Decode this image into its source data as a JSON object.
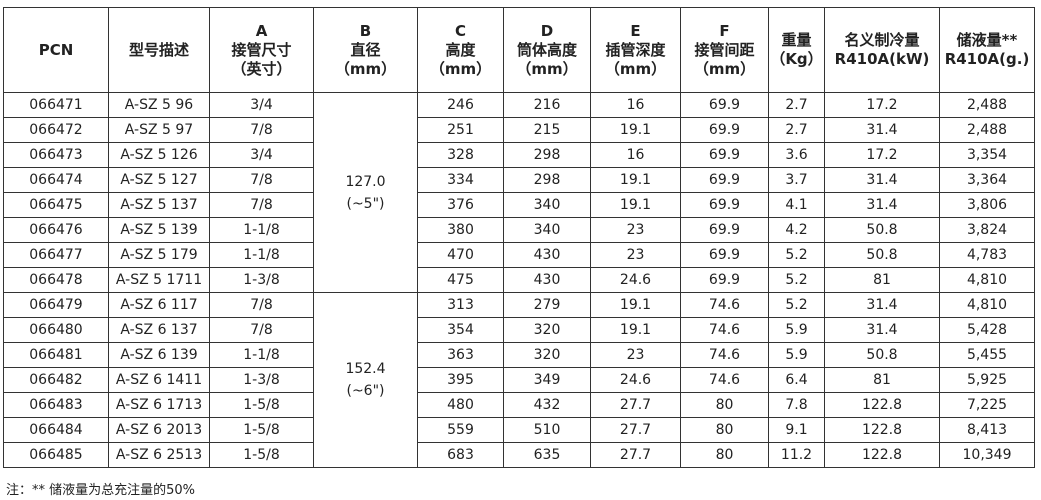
{
  "headers": [
    {
      "lines": [
        "PCN"
      ]
    },
    {
      "lines": [
        "型号描述"
      ]
    },
    {
      "lines": [
        "A",
        "接管尺寸",
        "（英寸）"
      ]
    },
    {
      "lines": [
        "B",
        "直径",
        "（mm）"
      ]
    },
    {
      "lines": [
        "C",
        "高度",
        "（mm）"
      ]
    },
    {
      "lines": [
        "D",
        "筒体高度",
        "（mm）"
      ]
    },
    {
      "lines": [
        "E",
        "插管深度",
        "（mm）"
      ]
    },
    {
      "lines": [
        "F",
        "接管间距",
        "（mm）"
      ]
    },
    {
      "lines": [
        "重量",
        "（Kg）"
      ]
    },
    {
      "lines": [
        "名义制冷量",
        "R410A(kW)"
      ]
    },
    {
      "lines": [
        "储液量**",
        "R410A(g.)"
      ]
    }
  ],
  "diameter_groups": [
    {
      "lines": [
        "127.0",
        "(~5\")"
      ],
      "rows": 8
    },
    {
      "lines": [
        "152.4",
        "(~6\")"
      ],
      "rows": 7
    }
  ],
  "rows": [
    [
      "066471",
      "A-SZ 5 96",
      "3/4",
      "246",
      "216",
      "16",
      "69.9",
      "2.7",
      "17.2",
      "2,488"
    ],
    [
      "066472",
      "A-SZ 5 97",
      "7/8",
      "251",
      "215",
      "19.1",
      "69.9",
      "2.7",
      "31.4",
      "2,488"
    ],
    [
      "066473",
      "A-SZ 5 126",
      "3/4",
      "328",
      "298",
      "16",
      "69.9",
      "3.6",
      "17.2",
      "3,354"
    ],
    [
      "066474",
      "A-SZ 5 127",
      "7/8",
      "334",
      "298",
      "19.1",
      "69.9",
      "3.7",
      "31.4",
      "3,364"
    ],
    [
      "066475",
      "A-SZ 5 137",
      "7/8",
      "376",
      "340",
      "19.1",
      "69.9",
      "4.1",
      "31.4",
      "3,806"
    ],
    [
      "066476",
      "A-SZ 5 139",
      "1-1/8",
      "380",
      "340",
      "23",
      "69.9",
      "4.2",
      "50.8",
      "3,824"
    ],
    [
      "066477",
      "A-SZ 5 179",
      "1-1/8",
      "470",
      "430",
      "23",
      "69.9",
      "5.2",
      "50.8",
      "4,783"
    ],
    [
      "066478",
      "A-SZ 5 1711",
      "1-3/8",
      "475",
      "430",
      "24.6",
      "69.9",
      "5.2",
      "81",
      "4,810"
    ],
    [
      "066479",
      "A-SZ 6 117",
      "7/8",
      "313",
      "279",
      "19.1",
      "74.6",
      "5.2",
      "31.4",
      "4,810"
    ],
    [
      "066480",
      "A-SZ 6 137",
      "7/8",
      "354",
      "320",
      "19.1",
      "74.6",
      "5.9",
      "31.4",
      "5,428"
    ],
    [
      "066481",
      "A-SZ 6 139",
      "1-1/8",
      "363",
      "320",
      "23",
      "74.6",
      "5.9",
      "50.8",
      "5,455"
    ],
    [
      "066482",
      "A-SZ 6 1411",
      "1-3/8",
      "395",
      "349",
      "24.6",
      "74.6",
      "6.4",
      "81",
      "5,925"
    ],
    [
      "066483",
      "A-SZ 6 1713",
      "1-5/8",
      "480",
      "432",
      "27.7",
      "80",
      "7.8",
      "122.8",
      "7,225"
    ],
    [
      "066484",
      "A-SZ 6 2013",
      "1-5/8",
      "559",
      "510",
      "27.7",
      "80",
      "9.1",
      "122.8",
      "8,413"
    ],
    [
      "066485",
      "A-SZ 6 2513",
      "1-5/8",
      "683",
      "635",
      "27.7",
      "80",
      "11.2",
      "122.8",
      "10,349"
    ]
  ],
  "note": "注：** 储液量为总充注量的50%"
}
